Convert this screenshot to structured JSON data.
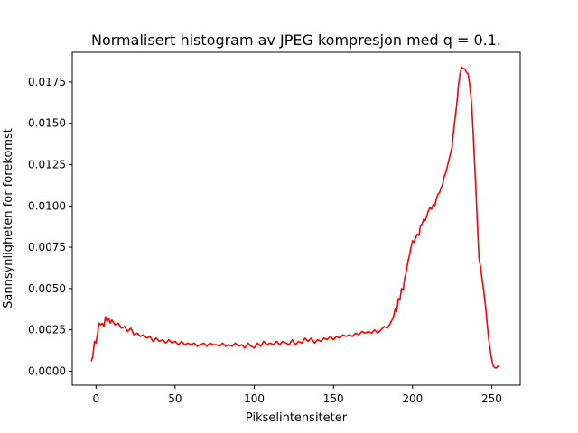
{
  "chart_data": {
    "type": "line",
    "title": "Normalisert histogram av JPEG kompresjon med q = 0.1.",
    "xlabel": "Pikselintensiteter",
    "ylabel": "Sannsynligheten for forekomst",
    "xlim": [
      -15,
      268
    ],
    "ylim": [
      -0.00085,
      0.0193
    ],
    "xticks": [
      0,
      50,
      100,
      150,
      200,
      250
    ],
    "xtick_labels": [
      "0",
      "50",
      "100",
      "150",
      "200",
      "250"
    ],
    "yticks": [
      0.0,
      0.0025,
      0.005,
      0.0075,
      0.01,
      0.0125,
      0.015,
      0.0175
    ],
    "ytick_labels": [
      "0.0000",
      "0.0025",
      "0.0050",
      "0.0075",
      "0.0100",
      "0.0125",
      "0.0150",
      "0.0175"
    ],
    "grid": false,
    "series": [
      {
        "color": "#ff0000",
        "points": [
          [
            -3,
            0.0006
          ],
          [
            -2,
            0.0009
          ],
          [
            -1,
            0.0018
          ],
          [
            0,
            0.0017
          ],
          [
            1,
            0.0023
          ],
          [
            2,
            0.0029
          ],
          [
            3,
            0.0028
          ],
          [
            4,
            0.0029
          ],
          [
            5,
            0.0027
          ],
          [
            6,
            0.0033
          ],
          [
            7,
            0.003
          ],
          [
            8,
            0.0032
          ],
          [
            9,
            0.0029
          ],
          [
            10,
            0.0031
          ],
          [
            12,
            0.0028
          ],
          [
            14,
            0.0029
          ],
          [
            16,
            0.0026
          ],
          [
            18,
            0.0027
          ],
          [
            20,
            0.0024
          ],
          [
            22,
            0.0026
          ],
          [
            24,
            0.0022
          ],
          [
            26,
            0.0023
          ],
          [
            28,
            0.0021
          ],
          [
            30,
            0.0022
          ],
          [
            32,
            0.002
          ],
          [
            34,
            0.0021
          ],
          [
            36,
            0.0018
          ],
          [
            38,
            0.002
          ],
          [
            40,
            0.0018
          ],
          [
            42,
            0.0019
          ],
          [
            44,
            0.0017
          ],
          [
            46,
            0.0019
          ],
          [
            48,
            0.0017
          ],
          [
            50,
            0.0018
          ],
          [
            52,
            0.0016
          ],
          [
            54,
            0.0018
          ],
          [
            56,
            0.0016
          ],
          [
            58,
            0.0017
          ],
          [
            60,
            0.0016
          ],
          [
            62,
            0.0017
          ],
          [
            64,
            0.0015
          ],
          [
            66,
            0.0016
          ],
          [
            68,
            0.0017
          ],
          [
            70,
            0.0015
          ],
          [
            72,
            0.0017
          ],
          [
            74,
            0.0016
          ],
          [
            76,
            0.0016
          ],
          [
            78,
            0.0015
          ],
          [
            80,
            0.0017
          ],
          [
            82,
            0.0015
          ],
          [
            84,
            0.0016
          ],
          [
            86,
            0.0015
          ],
          [
            88,
            0.0017
          ],
          [
            90,
            0.0015
          ],
          [
            92,
            0.0016
          ],
          [
            94,
            0.0014
          ],
          [
            96,
            0.0017
          ],
          [
            98,
            0.0015
          ],
          [
            100,
            0.0014
          ],
          [
            102,
            0.0017
          ],
          [
            104,
            0.0015
          ],
          [
            106,
            0.0018
          ],
          [
            108,
            0.0016
          ],
          [
            110,
            0.0017
          ],
          [
            112,
            0.0016
          ],
          [
            114,
            0.0018
          ],
          [
            116,
            0.0016
          ],
          [
            118,
            0.0018
          ],
          [
            120,
            0.0017
          ],
          [
            122,
            0.0016
          ],
          [
            124,
            0.0019
          ],
          [
            126,
            0.0016
          ],
          [
            128,
            0.0018
          ],
          [
            130,
            0.0017
          ],
          [
            132,
            0.002
          ],
          [
            134,
            0.0018
          ],
          [
            136,
            0.002
          ],
          [
            138,
            0.0017
          ],
          [
            140,
            0.0019
          ],
          [
            142,
            0.0018
          ],
          [
            144,
            0.002
          ],
          [
            146,
            0.0019
          ],
          [
            148,
            0.0021
          ],
          [
            150,
            0.0019
          ],
          [
            152,
            0.0021
          ],
          [
            154,
            0.002
          ],
          [
            156,
            0.0022
          ],
          [
            158,
            0.0021
          ],
          [
            160,
            0.0022
          ],
          [
            162,
            0.0021
          ],
          [
            164,
            0.0023
          ],
          [
            166,
            0.0022
          ],
          [
            168,
            0.0024
          ],
          [
            170,
            0.0023
          ],
          [
            172,
            0.0024
          ],
          [
            174,
            0.0023
          ],
          [
            176,
            0.0025
          ],
          [
            178,
            0.0023
          ],
          [
            180,
            0.0025
          ],
          [
            182,
            0.0027
          ],
          [
            184,
            0.0026
          ],
          [
            186,
            0.0029
          ],
          [
            188,
            0.0033
          ],
          [
            189,
            0.0038
          ],
          [
            190,
            0.0036
          ],
          [
            191,
            0.0044
          ],
          [
            192,
            0.0043
          ],
          [
            193,
            0.005
          ],
          [
            194,
            0.0049
          ],
          [
            195,
            0.0056
          ],
          [
            196,
            0.006
          ],
          [
            197,
            0.0066
          ],
          [
            198,
            0.007
          ],
          [
            199,
            0.0075
          ],
          [
            200,
            0.0079
          ],
          [
            201,
            0.0078
          ],
          [
            202,
            0.0081
          ],
          [
            203,
            0.0083
          ],
          [
            204,
            0.0082
          ],
          [
            205,
            0.0088
          ],
          [
            206,
            0.0089
          ],
          [
            207,
            0.0092
          ],
          [
            208,
            0.0091
          ],
          [
            209,
            0.0094
          ],
          [
            210,
            0.0097
          ],
          [
            211,
            0.0099
          ],
          [
            212,
            0.0098
          ],
          [
            213,
            0.0101
          ],
          [
            214,
            0.01
          ],
          [
            215,
            0.0104
          ],
          [
            216,
            0.0107
          ],
          [
            217,
            0.0108
          ],
          [
            218,
            0.0111
          ],
          [
            219,
            0.0113
          ],
          [
            220,
            0.0118
          ],
          [
            221,
            0.012
          ],
          [
            222,
            0.0124
          ],
          [
            223,
            0.0128
          ],
          [
            224,
            0.0132
          ],
          [
            225,
            0.0136
          ],
          [
            226,
            0.0146
          ],
          [
            227,
            0.0154
          ],
          [
            228,
            0.0162
          ],
          [
            229,
            0.0173
          ],
          [
            230,
            0.018
          ],
          [
            231,
            0.0184
          ],
          [
            232,
            0.0183
          ],
          [
            233,
            0.0183
          ],
          [
            234,
            0.0181
          ],
          [
            235,
            0.018
          ],
          [
            236,
            0.0174
          ],
          [
            237,
            0.0165
          ],
          [
            238,
            0.015
          ],
          [
            239,
            0.013
          ],
          [
            240,
            0.011
          ],
          [
            241,
            0.0088
          ],
          [
            242,
            0.0068
          ],
          [
            243,
            0.0063
          ],
          [
            244,
            0.0055
          ],
          [
            245,
            0.0048
          ],
          [
            246,
            0.004
          ],
          [
            247,
            0.003
          ],
          [
            248,
            0.002
          ],
          [
            249,
            0.0013
          ],
          [
            250,
            0.0007
          ],
          [
            251,
            0.0003
          ],
          [
            252,
            0.0002
          ],
          [
            253,
            0.0002
          ],
          [
            254,
            0.0003
          ],
          [
            255,
            0.0003
          ]
        ]
      }
    ]
  }
}
